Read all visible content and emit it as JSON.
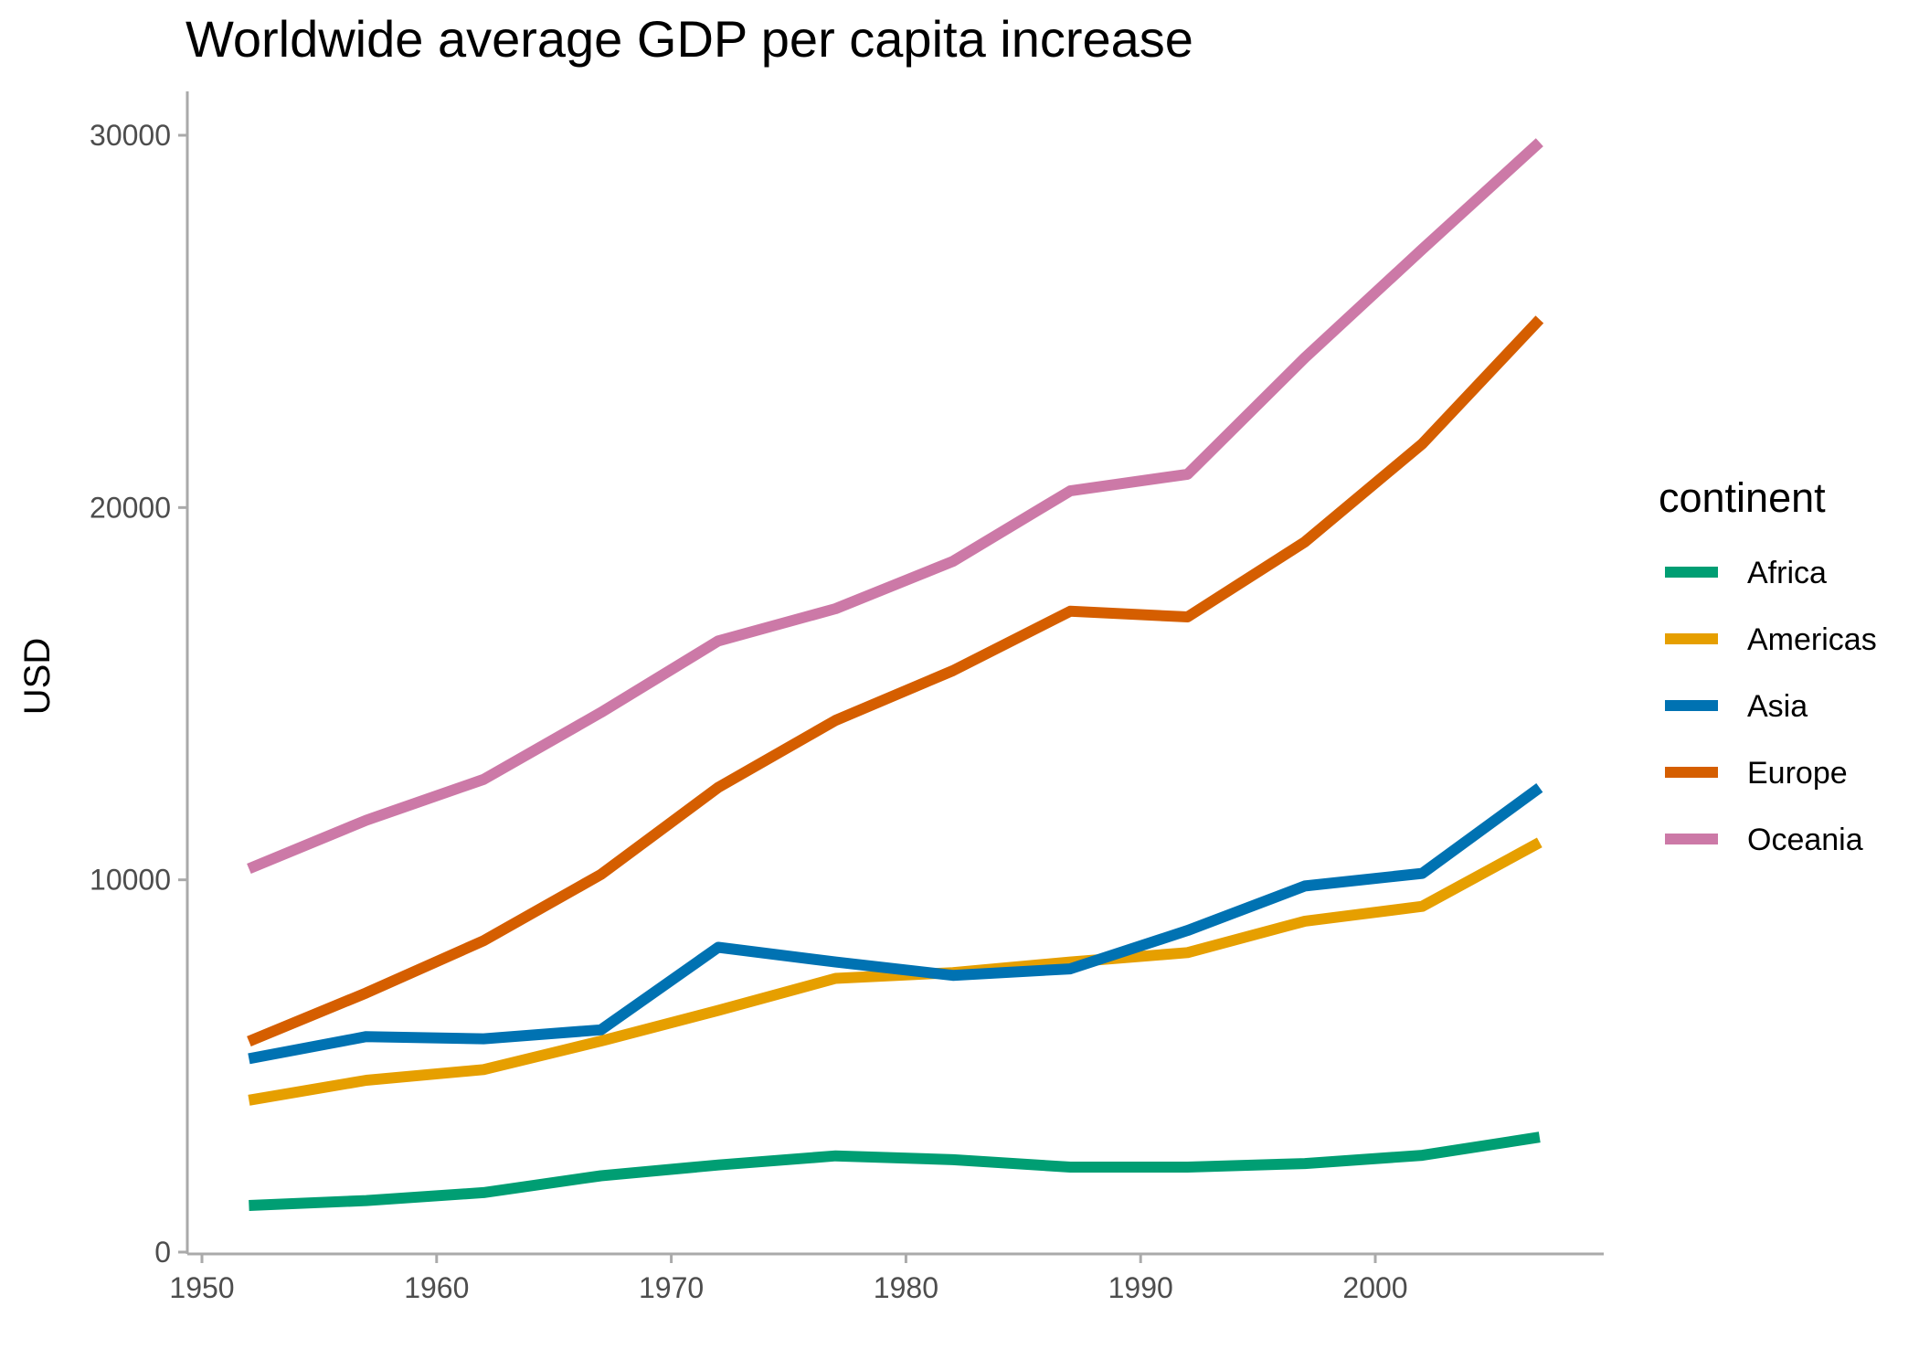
{
  "chart_data": {
    "type": "line",
    "title": "Worldwide average GDP per capita increase",
    "xlabel": "",
    "ylabel": "USD",
    "x": [
      1952,
      1957,
      1962,
      1967,
      1972,
      1977,
      1982,
      1987,
      1992,
      1997,
      2002,
      2007
    ],
    "xlim": [
      1950,
      2009
    ],
    "ylim": [
      0,
      30000
    ],
    "x_ticks": [
      1950,
      1960,
      1970,
      1980,
      1990,
      2000
    ],
    "y_ticks": [
      0,
      10000,
      20000,
      30000
    ],
    "grid": false,
    "legend": {
      "title": "continent",
      "placement": "right"
    },
    "series": [
      {
        "name": "Africa",
        "color": "#009E73",
        "values": [
          1253,
          1385,
          1598,
          2050,
          2340,
          2586,
          2482,
          2283,
          2282,
          2379,
          2599,
          3089
        ]
      },
      {
        "name": "Americas",
        "color": "#E69F00",
        "values": [
          4079,
          4616,
          4902,
          5668,
          6491,
          7352,
          7507,
          7793,
          8045,
          8889,
          9288,
          11003
        ]
      },
      {
        "name": "Asia",
        "color": "#0072B2",
        "values": [
          5195,
          5788,
          5729,
          5971,
          8187,
          7791,
          7434,
          7608,
          8640,
          9834,
          10174,
          12473
        ]
      },
      {
        "name": "Europe",
        "color": "#D55E00",
        "values": [
          5661,
          6963,
          8365,
          10144,
          12480,
          14284,
          15618,
          17214,
          17062,
          19077,
          21712,
          25054
        ]
      },
      {
        "name": "Oceania",
        "color": "#CC79A7",
        "values": [
          10298,
          11599,
          12696,
          14495,
          16417,
          17284,
          18555,
          20448,
          20894,
          24024,
          26939,
          29810
        ]
      }
    ]
  }
}
